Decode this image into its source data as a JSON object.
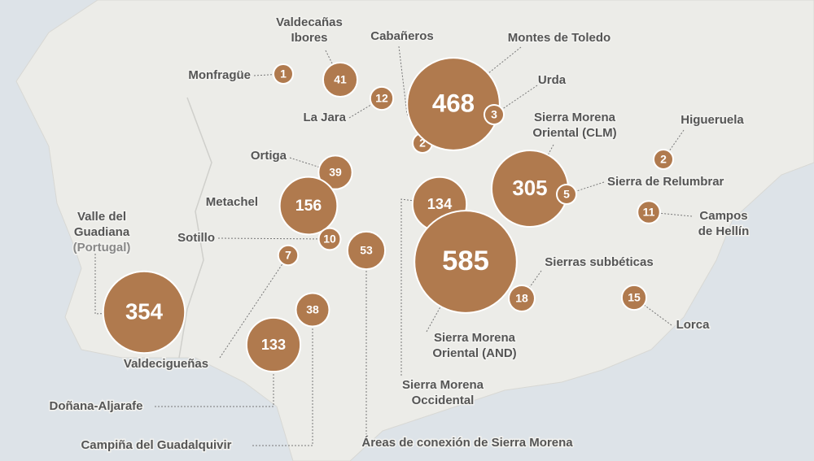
{
  "areas": [
    {
      "name": [
        "Monfragüe"
      ],
      "value": 1
    },
    {
      "name": [
        "Valdecañas",
        "Ibores"
      ],
      "value": 41
    },
    {
      "name": [
        "Cabañeros"
      ],
      "value": 2
    },
    {
      "name": [
        "Montes de Toledo"
      ],
      "value": 468
    },
    {
      "name": [
        "Urda"
      ],
      "value": 3
    },
    {
      "name": [
        "La Jara"
      ],
      "value": 12
    },
    {
      "name": [
        "Sierra Morena",
        "Oriental (CLM)"
      ],
      "value": 305
    },
    {
      "name": [
        "Higueruela"
      ],
      "value": 2
    },
    {
      "name": [
        "Sierra de Relumbrar"
      ],
      "value": 5
    },
    {
      "name": [
        "Ortiga"
      ],
      "value": 39
    },
    {
      "name": [
        "Metachel"
      ],
      "value": 156
    },
    {
      "name": [
        "Sierra Morena",
        "Occidental"
      ],
      "value": 134
    },
    {
      "name": [
        "Campos",
        "de Hellín"
      ],
      "value": 11
    },
    {
      "name": [
        "Valle del",
        "Guadiana",
        "(Portugal)"
      ],
      "value": 354
    },
    {
      "name": [
        "Sotillo"
      ],
      "value": 10
    },
    {
      "name": [
        "Áreas de conexión de Sierra Morena"
      ],
      "value": 53
    },
    {
      "name": [
        "Sierra Morena",
        "Oriental (AND)"
      ],
      "value": 585
    },
    {
      "name": [
        "Valdecigueñas"
      ],
      "value": 7
    },
    {
      "name": [
        "Sierras subbéticas"
      ],
      "value": 18
    },
    {
      "name": [
        "Campiña del Guadalquivir"
      ],
      "value": 38
    },
    {
      "name": [
        "Lorca"
      ],
      "value": 15
    },
    {
      "name": [
        "Doñana-Aljarafe"
      ],
      "value": 133
    }
  ]
}
